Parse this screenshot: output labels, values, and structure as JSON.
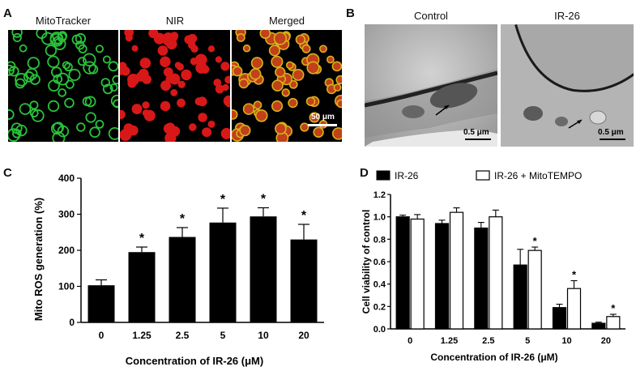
{
  "panels": {
    "A": {
      "letter": "A",
      "labels": [
        "MitoTracker",
        "NIR",
        "Merged"
      ],
      "scale_bar": "50 μm",
      "colors": [
        "#29c23a",
        "#d81818",
        "#d6b21a"
      ]
    },
    "B": {
      "letter": "B",
      "labels": [
        "Control",
        "IR-26"
      ],
      "scale_bar": "0.5 μm"
    },
    "C": {
      "letter": "C"
    },
    "D": {
      "letter": "D"
    }
  },
  "chart_data": [
    {
      "type": "bar",
      "panel": "C",
      "categories": [
        "0",
        "1.25",
        "2.5",
        "5",
        "10",
        "20"
      ],
      "series": [
        {
          "values": [
            103,
            195,
            237,
            277,
            294,
            230
          ],
          "errors": [
            15,
            14,
            26,
            40,
            24,
            42
          ]
        }
      ],
      "significance": [
        "",
        "*",
        "*",
        "*",
        "*",
        "*"
      ],
      "xlabel": "Concentration of IR-26 (μM)",
      "ylabel": "Mito ROS generation (%)",
      "ylim": [
        0,
        400
      ],
      "yticks": [
        0,
        100,
        200,
        300,
        400
      ],
      "bar_color": "#000000"
    },
    {
      "type": "bar",
      "panel": "D",
      "categories": [
        "0",
        "1.25",
        "2.5",
        "5",
        "10",
        "20"
      ],
      "series": [
        {
          "name": "IR-26",
          "values": [
            1.0,
            0.94,
            0.9,
            0.57,
            0.19,
            0.05
          ],
          "errors": [
            0.015,
            0.03,
            0.05,
            0.14,
            0.03,
            0.01
          ],
          "color": "#000000"
        },
        {
          "name": "IR-26 + MitoTEMPO",
          "values": [
            0.98,
            1.04,
            1.0,
            0.7,
            0.36,
            0.11
          ],
          "errors": [
            0.04,
            0.04,
            0.06,
            0.03,
            0.07,
            0.02
          ],
          "color": "#ffffff"
        }
      ],
      "significance": [
        "",
        "",
        "",
        "*",
        "*",
        "*"
      ],
      "xlabel": "Concentration of IR-26 (μM)",
      "ylabel": "Cell viability of control",
      "ylim": [
        0,
        1.2
      ],
      "yticks": [
        "0.0",
        "0.2",
        "0.4",
        "0.6",
        "0.8",
        "1.0",
        "1.2"
      ],
      "legend": "top"
    }
  ]
}
